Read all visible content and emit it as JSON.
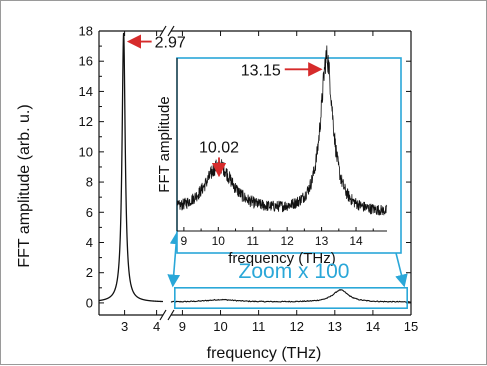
{
  "colors": {
    "trace": "#111111",
    "annotation": "#d62b2b",
    "zoom": "#2aa7d8",
    "axis": "#111111"
  },
  "chart_data": [
    {
      "type": "line",
      "role": "main",
      "xlabel": "frequency (THz)",
      "ylabel": "FFT amplitude (arb. u.)",
      "ylim": [
        -0.8,
        18
      ],
      "yticks": [
        0,
        2,
        4,
        6,
        8,
        10,
        12,
        14,
        16,
        18
      ],
      "x_broken_axis": true,
      "x_segment_1": {
        "xlim": [
          2.2,
          4.2
        ],
        "ticks": [
          3,
          4
        ]
      },
      "x_segment_2": {
        "xlim": [
          8.7,
          15.0
        ],
        "ticks": [
          9,
          10,
          11,
          12,
          13,
          14,
          15
        ]
      },
      "peaks": [
        {
          "x": 2.97,
          "y": 17.8,
          "width": 0.06
        },
        {
          "x": 10.02,
          "y": 0.16,
          "width": 0.5
        },
        {
          "x": 13.15,
          "y": 0.8,
          "width": 0.25
        }
      ],
      "baseline": 0.05,
      "annotations": [
        {
          "text": "2.97",
          "x": 2.97,
          "y": 17.3
        }
      ],
      "zoom_label": "Zoom x 100",
      "zoom_region": {
        "xlim": [
          8.8,
          14.9
        ],
        "ylim": [
          -0.35,
          1.0
        ]
      },
      "grid": false
    },
    {
      "type": "line",
      "role": "inset",
      "xlabel": "frequency (THz)",
      "ylabel": "FFT amplitude",
      "xticks": [
        9,
        10,
        11,
        12,
        13,
        14
      ],
      "xlim": [
        8.8,
        14.9
      ],
      "ylim": [
        0,
        80
      ],
      "peaks": [
        {
          "x": 10.02,
          "y": 22,
          "width": 0.5
        },
        {
          "x": 13.15,
          "y": 72,
          "width": 0.22
        }
      ],
      "baseline": 8,
      "noise": 2.5,
      "annotations": [
        {
          "text": "13.15",
          "x": 13.15,
          "y": 72,
          "arrow": "right"
        },
        {
          "text": "10.02",
          "x": 10.02,
          "y": 22,
          "arrow": "down"
        }
      ],
      "grid": false
    }
  ]
}
